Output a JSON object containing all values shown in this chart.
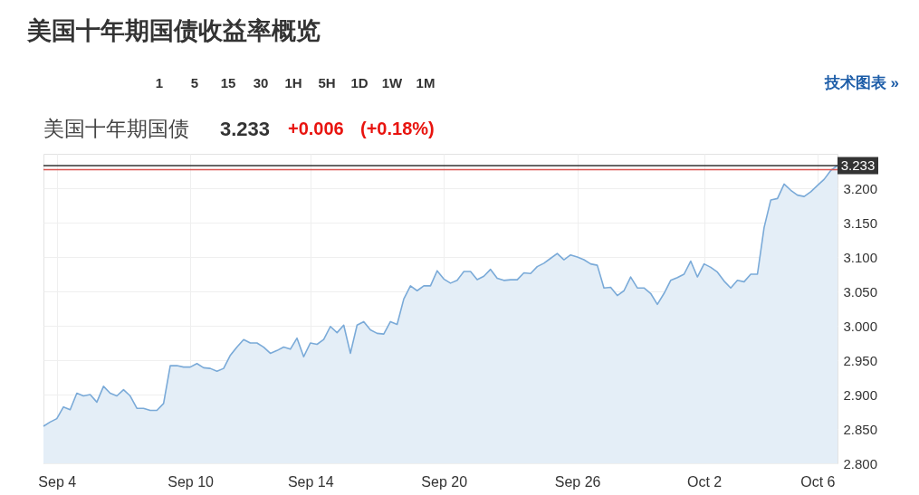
{
  "chart_data": {
    "type": "area",
    "title": "美国十年期国债收益率概览",
    "subtitle": "美国十年期国债",
    "categories": [
      null,
      null,
      "Sep 4",
      null,
      null,
      null,
      null,
      null,
      null,
      null,
      null,
      null,
      null,
      null,
      null,
      null,
      null,
      null,
      null,
      null,
      null,
      null,
      "Sep 10",
      null,
      null,
      null,
      null,
      null,
      null,
      null,
      null,
      null,
      null,
      null,
      null,
      null,
      null,
      null,
      null,
      null,
      "Sep 14",
      null,
      null,
      null,
      null,
      null,
      null,
      null,
      null,
      null,
      null,
      null,
      null,
      null,
      null,
      null,
      null,
      null,
      null,
      null,
      "Sep 20",
      null,
      null,
      null,
      null,
      null,
      null,
      null,
      null,
      null,
      null,
      null,
      null,
      null,
      null,
      null,
      null,
      null,
      null,
      null,
      "Sep 26",
      null,
      null,
      null,
      null,
      null,
      null,
      null,
      null,
      null,
      null,
      null,
      null,
      null,
      null,
      null,
      null,
      null,
      null,
      "Oct 2",
      null,
      null,
      null,
      null,
      null,
      null,
      null,
      null,
      null,
      null,
      null,
      null,
      null,
      null,
      null,
      null,
      "Oct 6",
      null,
      null,
      null
    ],
    "series": [
      {
        "color": "#7aaad8",
        "values": [
          2.854,
          2.86,
          2.865,
          2.882,
          2.878,
          2.902,
          2.898,
          2.9,
          2.889,
          2.912,
          2.902,
          2.898,
          2.907,
          2.898,
          2.88,
          2.88,
          2.877,
          2.877,
          2.887,
          2.942,
          2.942,
          2.94,
          2.94,
          2.945,
          2.939,
          2.938,
          2.934,
          2.938,
          2.957,
          2.969,
          2.98,
          2.975,
          2.975,
          2.969,
          2.96,
          2.964,
          2.969,
          2.966,
          2.982,
          2.955,
          2.975,
          2.973,
          2.98,
          2.999,
          2.99,
          3.001,
          2.96,
          3.001,
          3.006,
          2.994,
          2.989,
          2.988,
          3.006,
          3.002,
          3.039,
          3.058,
          3.051,
          3.058,
          3.058,
          3.08,
          3.068,
          3.062,
          3.066,
          3.079,
          3.079,
          3.067,
          3.072,
          3.082,
          3.069,
          3.066,
          3.067,
          3.067,
          3.077,
          3.076,
          3.086,
          3.091,
          3.098,
          3.105,
          3.096,
          3.103,
          3.1,
          3.096,
          3.09,
          3.088,
          3.055,
          3.056,
          3.044,
          3.051,
          3.071,
          3.055,
          3.055,
          3.047,
          3.031,
          3.047,
          3.066,
          3.07,
          3.075,
          3.094,
          3.071,
          3.09,
          3.085,
          3.078,
          3.065,
          3.055,
          3.066,
          3.064,
          3.075,
          3.075,
          3.143,
          3.183,
          3.185,
          3.206,
          3.197,
          3.19,
          3.188,
          3.195,
          3.204,
          3.213,
          3.226,
          3.233
        ]
      }
    ],
    "ylim": [
      2.8,
      3.25
    ],
    "yticks": [
      {
        "value": 2.8,
        "label": "2.800"
      },
      {
        "value": 2.85,
        "label": "2.850"
      },
      {
        "value": 2.9,
        "label": "2.900"
      },
      {
        "value": 2.95,
        "label": "2.950"
      },
      {
        "value": 3.0,
        "label": "3.000"
      },
      {
        "value": 3.05,
        "label": "3.050"
      },
      {
        "value": 3.1,
        "label": "3.100"
      },
      {
        "value": 3.15,
        "label": "3.150"
      },
      {
        "value": 3.2,
        "label": "3.200"
      }
    ],
    "grid": true,
    "ref_lines": [
      {
        "axis": "y",
        "value": 3.233,
        "label": "3.233",
        "color": "#333333"
      },
      {
        "axis": "y",
        "value": 3.227,
        "color": "#d9534f"
      }
    ],
    "annotations": [
      "3.233",
      "+0.006",
      "(+0.18%)",
      "15",
      "30",
      "1H",
      "5H",
      "1D",
      "1W",
      "1M",
      "1",
      "5",
      "技术图表 »"
    ]
  }
}
